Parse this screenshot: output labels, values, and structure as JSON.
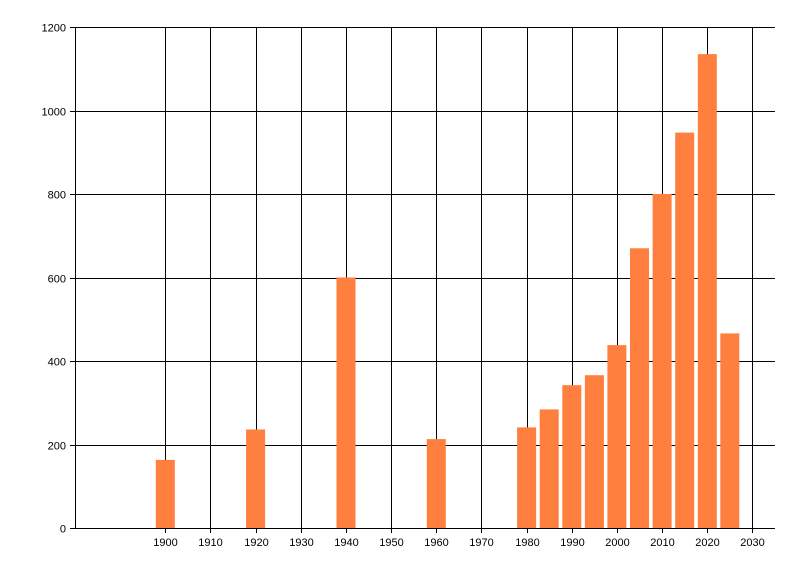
{
  "chart_data": {
    "type": "bar",
    "title": "",
    "xlabel": "",
    "ylabel": "",
    "x": [
      1900,
      1920,
      1940,
      1960,
      1980,
      1985,
      1990,
      1995,
      2000,
      2005,
      2010,
      2015,
      2020,
      2025
    ],
    "values": [
      163,
      236,
      600,
      213,
      241,
      284,
      342,
      366,
      438,
      670,
      800,
      947,
      1135,
      466
    ],
    "xlim": [
      1880,
      2035
    ],
    "ylim": [
      0,
      1200
    ],
    "x_ticks": [
      1900,
      1910,
      1920,
      1930,
      1940,
      1950,
      1960,
      1970,
      1980,
      1990,
      2000,
      2010,
      2020,
      2030
    ],
    "y_ticks": [
      0,
      200,
      400,
      600,
      800,
      1000,
      1200
    ],
    "x_tick_labels": [
      "1900",
      "1910",
      "1920",
      "1930",
      "1940",
      "1950",
      "1960",
      "1970",
      "1980",
      "1990",
      "2000",
      "2010",
      "2020",
      "2030"
    ],
    "y_tick_labels": [
      "0",
      "200",
      "400",
      "600",
      "800",
      "1000",
      "1200"
    ],
    "grid": true,
    "legend": "none",
    "colors": {
      "bar": "#ff7f3f",
      "grid": "#000000",
      "axis": "#000000"
    }
  }
}
